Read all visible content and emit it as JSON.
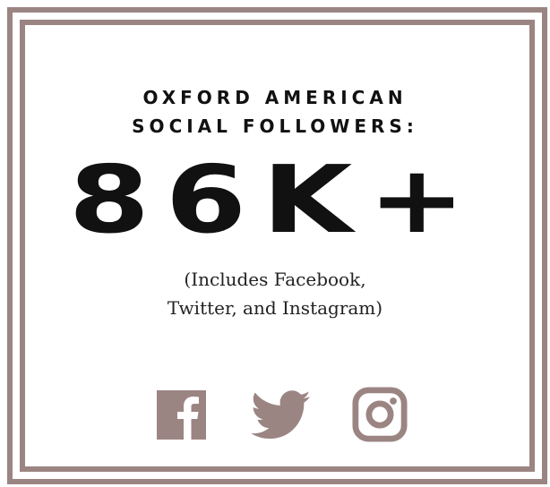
{
  "heading": {
    "line1": "OXFORD AMERICAN",
    "line2": "SOCIAL FOLLOWERS:"
  },
  "stat": {
    "value": "86K+"
  },
  "note": {
    "line1": "(Includes Facebook,",
    "line2": "Twitter, and Instagram)"
  },
  "icons": [
    "facebook-icon",
    "twitter-icon",
    "instagram-icon"
  ],
  "colors": {
    "accent": "#9b8583",
    "text": "#111111",
    "background": "#ffffff"
  }
}
